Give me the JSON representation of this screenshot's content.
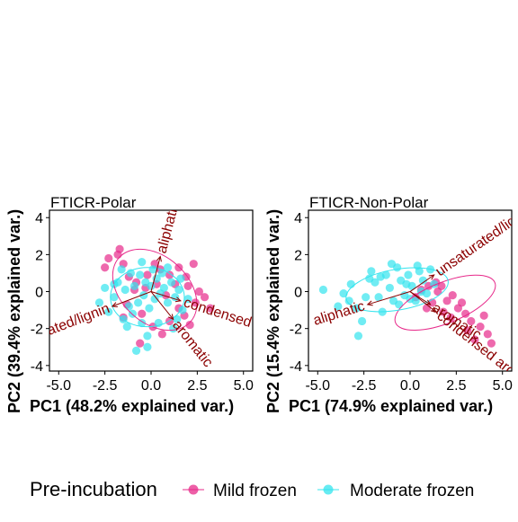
{
  "chart_data": [
    {
      "type": "scatter",
      "title": "FTICR-Polar",
      "xlabel": "PC1 (48.2% explained var.)",
      "ylabel": "PC2 (39.4% explained var.)",
      "xlim": [
        -5.5,
        5.5
      ],
      "ylim": [
        -4.3,
        4.4
      ],
      "xticks": [
        -5.0,
        -2.5,
        0.0,
        2.5,
        5.0
      ],
      "yticks": [
        -4,
        -2,
        0,
        2,
        4
      ],
      "xtick_labels": [
        "-5.0",
        "-2.5",
        "0.0",
        "2.5",
        "5.0"
      ],
      "ytick_labels": [
        "-4",
        "-2",
        "0",
        "2",
        "4"
      ],
      "series": [
        {
          "name": "Mild frozen",
          "color": "#e7298a",
          "points": [
            [
              -1.7,
              2.3
            ],
            [
              -1.8,
              2.0
            ],
            [
              -2.3,
              1.8
            ],
            [
              -2.5,
              1.3
            ],
            [
              -1.5,
              1.5
            ],
            [
              -1.2,
              0.8
            ],
            [
              -0.8,
              0.5
            ],
            [
              0.2,
              1.5
            ],
            [
              0.5,
              1.2
            ],
            [
              1.0,
              0.9
            ],
            [
              1.5,
              1.3
            ],
            [
              1.9,
              0.8
            ],
            [
              2.3,
              1.5
            ],
            [
              2.0,
              0.3
            ],
            [
              2.6,
              0.0
            ],
            [
              2.9,
              -0.3
            ],
            [
              2.4,
              -0.6
            ],
            [
              3.2,
              -0.9
            ],
            [
              1.8,
              -1.3
            ],
            [
              1.5,
              -0.9
            ],
            [
              2.1,
              -1.8
            ],
            [
              1.0,
              -1.6
            ],
            [
              0.6,
              -2.3
            ],
            [
              0.1,
              -1.9
            ],
            [
              -0.5,
              -1.2
            ],
            [
              -1.3,
              -0.7
            ],
            [
              -0.9,
              0.1
            ],
            [
              0.3,
              0.4
            ],
            [
              -0.2,
              0.9
            ],
            [
              0.8,
              -0.2
            ],
            [
              1.3,
              0.4
            ],
            [
              -0.6,
              -2.8
            ],
            [
              -1.5,
              -1.4
            ],
            [
              -0.3,
              0.2
            ]
          ],
          "ellipse": {
            "cx": 0.2,
            "cy": 0.1,
            "rx": 2.6,
            "ry": 1.8,
            "angle_deg": -42
          }
        },
        {
          "name": "Moderate frozen",
          "color": "#33e4ee",
          "points": [
            [
              -2.8,
              -0.6
            ],
            [
              -2.3,
              -1.1
            ],
            [
              -2.0,
              -0.3
            ],
            [
              -1.8,
              0.5
            ],
            [
              -1.5,
              -1.5
            ],
            [
              -1.3,
              -1.9
            ],
            [
              -1.1,
              1.0
            ],
            [
              -0.9,
              0.3
            ],
            [
              -0.7,
              -0.6
            ],
            [
              -0.5,
              1.6
            ],
            [
              -0.3,
              0.5
            ],
            [
              -0.1,
              -0.9
            ],
            [
              0.1,
              1.2
            ],
            [
              0.3,
              0.7
            ],
            [
              0.5,
              -0.1
            ],
            [
              0.7,
              0.2
            ],
            [
              0.9,
              -0.6
            ],
            [
              1.1,
              0.5
            ],
            [
              1.3,
              -0.3
            ],
            [
              1.5,
              0.1
            ],
            [
              1.7,
              -1.0
            ],
            [
              -0.8,
              -3.2
            ],
            [
              -0.2,
              -2.4
            ],
            [
              0.4,
              -1.7
            ],
            [
              1.2,
              -2.0
            ],
            [
              -1.6,
              1.2
            ],
            [
              -0.4,
              -0.2
            ],
            [
              0.0,
              0.3
            ],
            [
              0.2,
              -0.4
            ],
            [
              -0.6,
              0.9
            ],
            [
              -1.2,
              -0.8
            ],
            [
              -2.0,
              0.4
            ],
            [
              -1.0,
              -1.2
            ],
            [
              0.6,
              1.0
            ],
            [
              1.4,
              -1.5
            ],
            [
              0.9,
              1.3
            ],
            [
              -0.2,
              -3.0
            ],
            [
              2.0,
              -0.4
            ],
            [
              -1.4,
              0.1
            ],
            [
              -0.5,
              -1.7
            ],
            [
              1.6,
              0.7
            ],
            [
              -2.5,
              0.2
            ]
          ],
          "ellipse": {
            "cx": -0.2,
            "cy": -0.3,
            "rx": 2.0,
            "ry": 1.6,
            "angle_deg": 0
          }
        }
      ],
      "loadings": [
        {
          "label": "aliphatic",
          "x": 0.5,
          "y": 1.9
        },
        {
          "label": "condensed",
          "x": 1.6,
          "y": -0.5
        },
        {
          "label": "aromatic",
          "x": 1.2,
          "y": -1.5
        },
        {
          "label": "unsaturated/lignin",
          "x": -2.1,
          "y": -0.8
        }
      ]
    },
    {
      "type": "scatter",
      "title": "FTICR-Non-Polar",
      "xlabel": "PC1 (74.9% explained var.)",
      "ylabel": "PC2 (15.4% explained var.)",
      "xlim": [
        -5.5,
        5.5
      ],
      "ylim": [
        -4.3,
        4.4
      ],
      "xticks": [
        -5.0,
        -2.5,
        0.0,
        2.5,
        5.0
      ],
      "yticks": [
        -4,
        -2,
        0,
        2,
        4
      ],
      "xtick_labels": [
        "-5.0",
        "-2.5",
        "0.0",
        "2.5",
        "5.0"
      ],
      "ytick_labels": [
        "-4",
        "-2",
        "0",
        "2",
        "4"
      ],
      "series": [
        {
          "name": "Mild frozen",
          "color": "#e7298a",
          "points": [
            [
              1.0,
              0.3
            ],
            [
              1.5,
              0.0
            ],
            [
              2.0,
              -0.5
            ],
            [
              2.3,
              -0.2
            ],
            [
              2.6,
              -0.9
            ],
            [
              3.0,
              -1.2
            ],
            [
              3.3,
              -1.6
            ],
            [
              3.8,
              -1.9
            ],
            [
              4.2,
              -2.3
            ],
            [
              4.4,
              -2.8
            ],
            [
              1.2,
              -0.6
            ],
            [
              1.8,
              -1.1
            ],
            [
              0.6,
              0.1
            ],
            [
              1.4,
              0.5
            ],
            [
              2.8,
              -0.6
            ],
            [
              3.5,
              -2.6
            ],
            [
              4.0,
              -1.3
            ],
            [
              0.3,
              -0.3
            ],
            [
              1.7,
              0.3
            ],
            [
              2.2,
              -1.4
            ],
            [
              3.1,
              -2.1
            ],
            [
              0.9,
              -0.9
            ]
          ],
          "ellipse": {
            "cx": 1.9,
            "cy": -0.6,
            "rx": 2.9,
            "ry": 1.1,
            "angle_deg": 22
          }
        },
        {
          "name": "Moderate frozen",
          "color": "#33e4ee",
          "points": [
            [
              -4.7,
              0.1
            ],
            [
              -3.9,
              -0.8
            ],
            [
              -3.6,
              -0.1
            ],
            [
              -3.2,
              0.4
            ],
            [
              -2.9,
              -0.9
            ],
            [
              -2.6,
              -1.6
            ],
            [
              -2.4,
              -0.3
            ],
            [
              -2.1,
              1.1
            ],
            [
              -1.9,
              0.5
            ],
            [
              -1.7,
              -0.3
            ],
            [
              -1.5,
              -1.1
            ],
            [
              -1.3,
              0.9
            ],
            [
              -1.1,
              0.2
            ],
            [
              -0.9,
              -0.5
            ],
            [
              -0.7,
              1.3
            ],
            [
              -0.5,
              0.6
            ],
            [
              -0.3,
              -0.2
            ],
            [
              -0.1,
              0.9
            ],
            [
              0.1,
              0.3
            ],
            [
              0.3,
              -0.5
            ],
            [
              0.5,
              1.1
            ],
            [
              0.7,
              0.6
            ],
            [
              0.9,
              -0.1
            ],
            [
              1.1,
              1.2
            ],
            [
              1.3,
              0.4
            ],
            [
              -0.6,
              -0.7
            ],
            [
              -2.8,
              -2.4
            ],
            [
              -1.0,
              1.5
            ],
            [
              0.0,
              -0.4
            ],
            [
              -2.2,
              0.7
            ],
            [
              -3.3,
              -0.5
            ],
            [
              0.6,
              0.0
            ],
            [
              -0.2,
              0.4
            ],
            [
              -1.6,
              0.8
            ],
            [
              0.4,
              1.4
            ]
          ],
          "ellipse": {
            "cx": -0.7,
            "cy": 0.1,
            "rx": 2.8,
            "ry": 1.1,
            "angle_deg": 10
          }
        }
      ],
      "loadings": [
        {
          "label": "unsaturated/lignin",
          "x": 1.3,
          "y": 0.9
        },
        {
          "label": "aromatic",
          "x": 1.1,
          "y": -0.7
        },
        {
          "label": "condensed aromatic",
          "x": 1.4,
          "y": -1.1
        },
        {
          "label": "aliphatic",
          "x": -2.3,
          "y": -0.7
        }
      ]
    }
  ],
  "legend": {
    "title": "Pre-incubation",
    "items": [
      {
        "label": "Mild frozen",
        "color": "#e7298a"
      },
      {
        "label": "Moderate frozen",
        "color": "#33e4ee"
      }
    ]
  }
}
